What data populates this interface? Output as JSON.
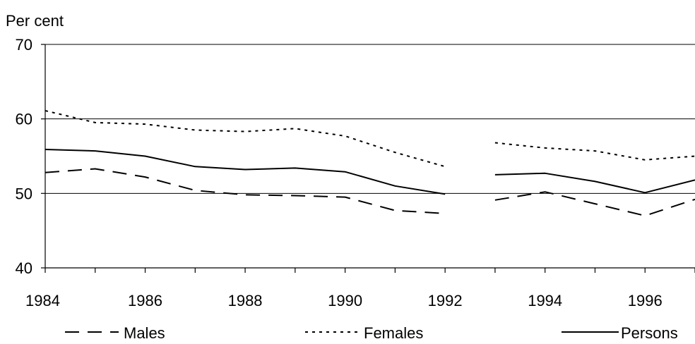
{
  "chart_data": {
    "type": "line",
    "ylabel": "Per cent",
    "ylim": [
      40,
      70
    ],
    "yticks": [
      40,
      50,
      60,
      70
    ],
    "xlim": [
      1984,
      1997
    ],
    "xticks": [
      1984,
      1986,
      1988,
      1990,
      1992,
      1994,
      1996
    ],
    "grid": "horizontal",
    "legend_position": "bottom",
    "x": [
      1984,
      1985,
      1986,
      1987,
      1988,
      1989,
      1990,
      1991,
      1992,
      1993,
      1994,
      1995,
      1996,
      1997
    ],
    "series": [
      {
        "name": "Males",
        "style": "dashed",
        "values": [
          52.8,
          53.3,
          52.2,
          50.4,
          49.8,
          49.7,
          49.5,
          47.7,
          47.3,
          null,
          null,
          null,
          null,
          null
        ],
        "values_b": [
          null,
          null,
          null,
          null,
          null,
          null,
          null,
          null,
          null,
          49.1,
          50.2,
          48.6,
          47.0,
          49.2
        ]
      },
      {
        "name": "Females",
        "style": "dotted",
        "values": [
          61.1,
          59.5,
          59.3,
          58.5,
          58.3,
          58.7,
          57.7,
          55.5,
          53.6,
          null,
          null,
          null,
          null,
          null
        ],
        "values_b": [
          null,
          null,
          null,
          null,
          null,
          null,
          null,
          null,
          null,
          56.8,
          56.1,
          55.7,
          54.5,
          55.0
        ]
      },
      {
        "name": "Persons",
        "style": "solid",
        "values": [
          55.9,
          55.7,
          55.0,
          53.6,
          53.2,
          53.4,
          52.9,
          51.0,
          49.9,
          null,
          null,
          null,
          null,
          null
        ],
        "values_b": [
          null,
          null,
          null,
          null,
          null,
          null,
          null,
          null,
          null,
          52.5,
          52.7,
          51.6,
          50.1,
          51.8
        ]
      }
    ]
  },
  "legend": [
    {
      "label": "Males",
      "style": "dashed"
    },
    {
      "label": "Females",
      "style": "dotted"
    },
    {
      "label": "Persons",
      "style": "solid"
    }
  ]
}
